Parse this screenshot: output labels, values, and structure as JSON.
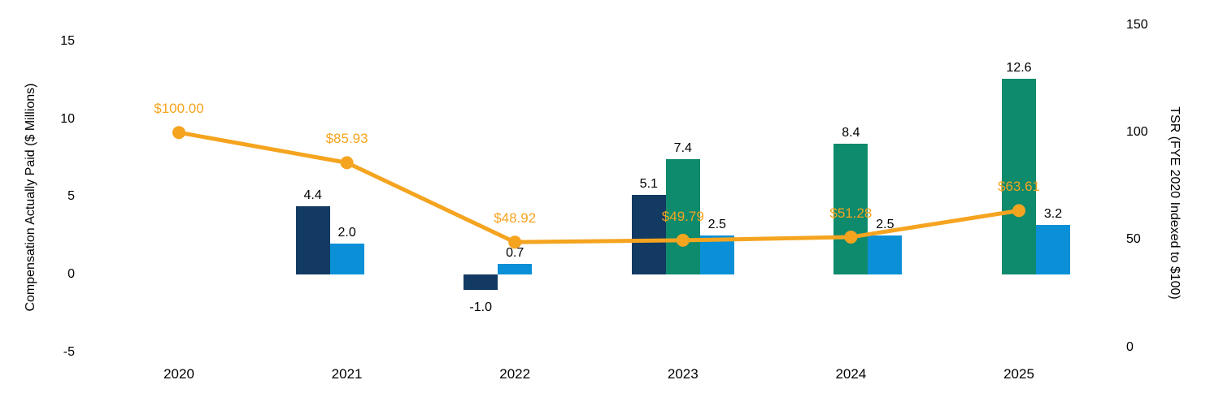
{
  "chart_data": {
    "type": "combo-bar-line",
    "title": "",
    "categories": [
      "2020",
      "2021",
      "2022",
      "2023",
      "2024",
      "2025"
    ],
    "left_axis": {
      "title": "Compensation Actually Paid ($ Millions)",
      "ticks": [
        "15",
        "10",
        "5",
        "0",
        "-5"
      ],
      "tick_values": [
        15,
        10,
        5,
        0,
        -5
      ],
      "range": [
        -5,
        15
      ]
    },
    "right_axis": {
      "title": "TSR (FYE 2020 Indexed to $100)",
      "ticks": [
        "150",
        "100",
        "50",
        "0"
      ],
      "tick_values": [
        150,
        100,
        50,
        0
      ],
      "range": [
        0,
        150
      ]
    },
    "grid": false,
    "legend": "none",
    "colors": {
      "dark-blue": "#123A63",
      "green": "#0E8A6C",
      "light-blue": "#0B90D8",
      "orange": "#F5A41F"
    },
    "bar_series": [
      {
        "key": "dark-blue",
        "entries": [
          {
            "year": "2021",
            "value": 4.4,
            "label": "4.4",
            "slot": 0
          },
          {
            "year": "2022",
            "value": -1.0,
            "label": "-1.0",
            "slot": 0
          },
          {
            "year": "2023",
            "value": 5.1,
            "label": "5.1",
            "slot": 0
          }
        ]
      },
      {
        "key": "green",
        "entries": [
          {
            "year": "2023",
            "value": 7.4,
            "label": "7.4",
            "slot": 1
          },
          {
            "year": "2024",
            "value": 8.4,
            "label": "8.4",
            "slot": 1
          },
          {
            "year": "2025",
            "value": 12.6,
            "label": "12.6",
            "slot": 1
          }
        ]
      },
      {
        "key": "light-blue",
        "entries": [
          {
            "year": "2021",
            "value": 2.0,
            "label": "2.0",
            "slot": 1
          },
          {
            "year": "2022",
            "value": 0.7,
            "label": "0.7",
            "slot": 1
          },
          {
            "year": "2023",
            "value": 2.5,
            "label": "2.5",
            "slot": 2
          },
          {
            "year": "2024",
            "value": 2.5,
            "label": "2.5",
            "slot": 2
          },
          {
            "year": "2025",
            "value": 3.2,
            "label": "3.2",
            "slot": 2
          }
        ]
      }
    ],
    "line_series": {
      "key": "tsr",
      "points": [
        {
          "year": "2020",
          "value": 100.0,
          "label": "$100.00"
        },
        {
          "year": "2021",
          "value": 85.93,
          "label": "$85.93"
        },
        {
          "year": "2022",
          "value": 48.92,
          "label": "$48.92"
        },
        {
          "year": "2023",
          "value": 49.79,
          "label": "$49.79"
        },
        {
          "year": "2024",
          "value": 51.28,
          "label": "$51.28"
        },
        {
          "year": "2025",
          "value": 63.61,
          "label": "$63.61"
        }
      ]
    }
  }
}
